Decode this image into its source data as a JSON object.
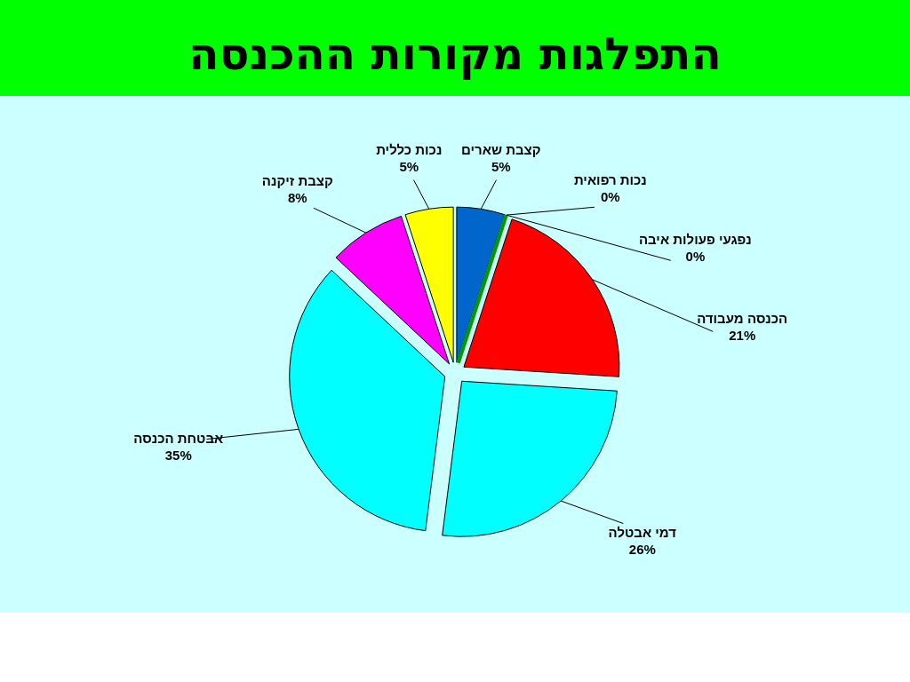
{
  "chart_data": {
    "type": "pie",
    "title": "התפלגות  מקורות  ההכנסה",
    "categories": [
      "קצבת שארים",
      "נכות רפואית",
      "נפגעי פעולות איבה",
      "הכנסה מעבודה",
      "דמי אבטלה",
      "אבטחת הכנסה",
      "קצבת זיקנה",
      "נכות כללית"
    ],
    "values": [
      5,
      0,
      0,
      21,
      26,
      35,
      8,
      5
    ],
    "value_labels": [
      "5%",
      "0%",
      "0%",
      "21%",
      "26%",
      "35%",
      "8%",
      "5%"
    ],
    "colors": [
      "#0066cc",
      "#66ff33",
      "#009900",
      "#ff0000",
      "#00ffff",
      "#00ffff",
      "#ff00ff",
      "#ffff00"
    ]
  }
}
